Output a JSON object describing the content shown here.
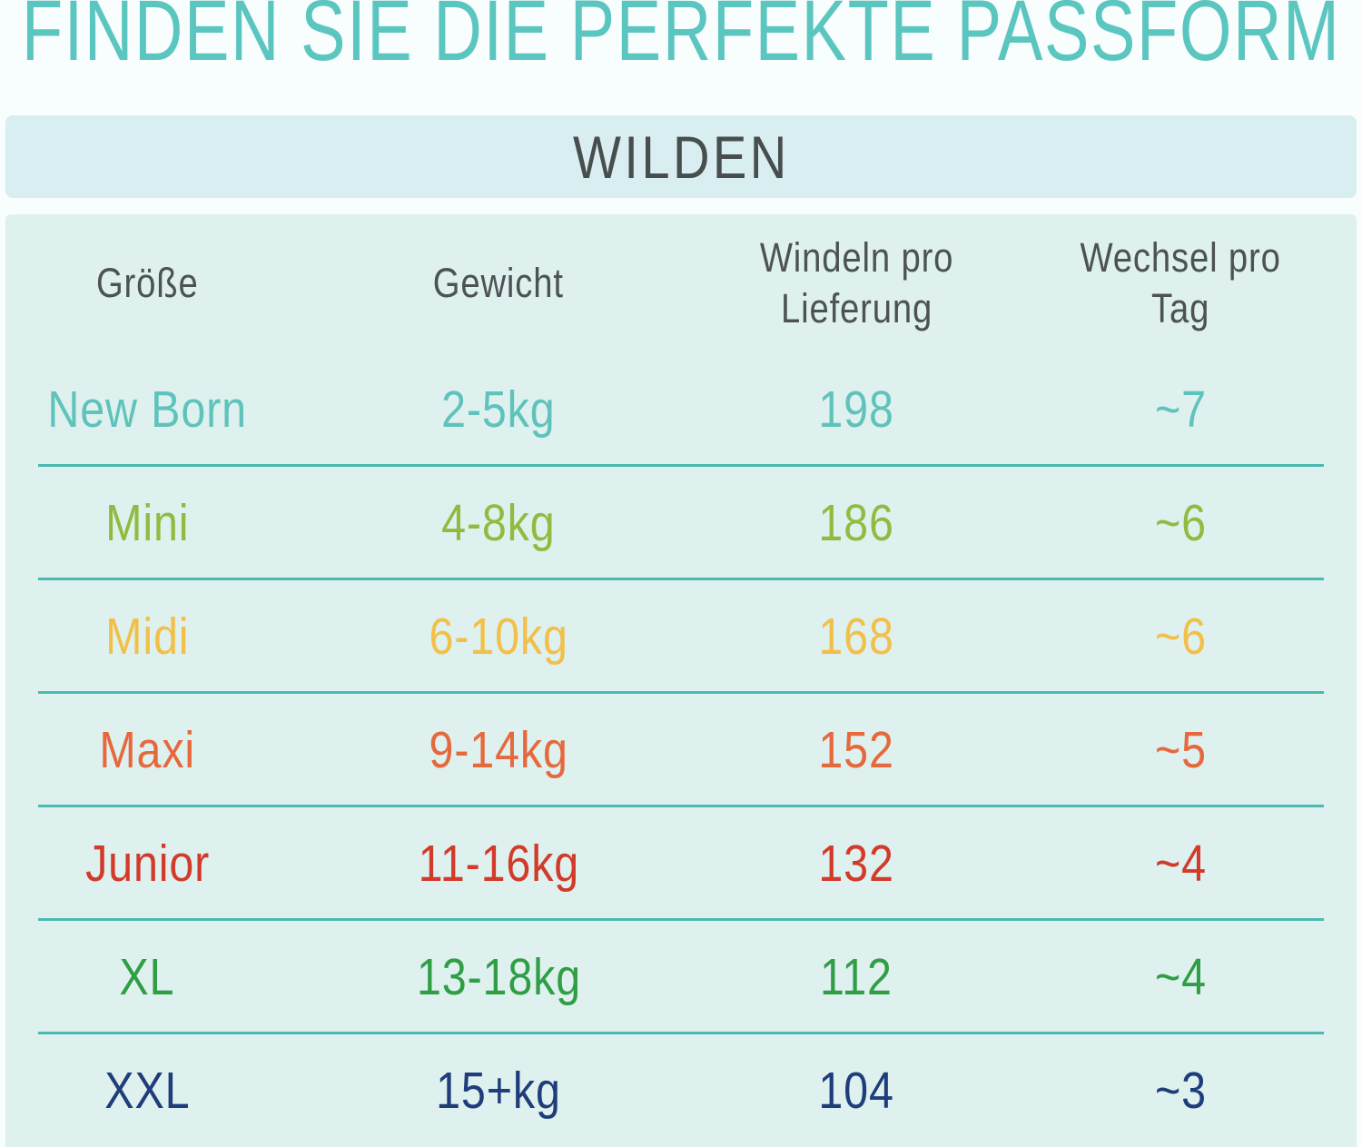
{
  "page_background": "#f8fdfd",
  "title": {
    "text": "FINDEN SIE DIE PERFEKTE PASSFORM",
    "color": "#5bc6bf"
  },
  "banner": {
    "label": "WILDEN",
    "background": "#d9eef0",
    "text_color": "#484d4e"
  },
  "table": {
    "background": "#def1ef",
    "header_color": "#4d5254",
    "divider_color": "#4cb9b1",
    "header_lines": [
      [
        "Größe"
      ],
      [
        "Gewicht"
      ],
      [
        "Windeln pro",
        "Lieferung"
      ],
      [
        "Wechsel pro",
        "Tag"
      ]
    ],
    "row_colors": [
      "#5fc3bb",
      "#8fbc40",
      "#f2c04a",
      "#e5693d",
      "#d23a2a",
      "#2f9e45",
      "#1f3d7a"
    ]
  },
  "chart_data": {
    "type": "table",
    "title": "FINDEN SIE DIE PERFEKTE PASSFORM",
    "subtitle": "WILDEN",
    "columns": [
      "Größe",
      "Gewicht",
      "Windeln pro Lieferung",
      "Wechsel pro Tag"
    ],
    "rows": [
      [
        "New Born",
        "2-5kg",
        198,
        "~7"
      ],
      [
        "Mini",
        "4-8kg",
        186,
        "~6"
      ],
      [
        "Midi",
        "6-10kg",
        168,
        "~6"
      ],
      [
        "Maxi",
        "9-14kg",
        152,
        "~5"
      ],
      [
        "Junior",
        "11-16kg",
        132,
        "~4"
      ],
      [
        "XL",
        "13-18kg",
        112,
        "~4"
      ],
      [
        "XXL",
        "15+kg",
        104,
        "~3"
      ]
    ]
  }
}
